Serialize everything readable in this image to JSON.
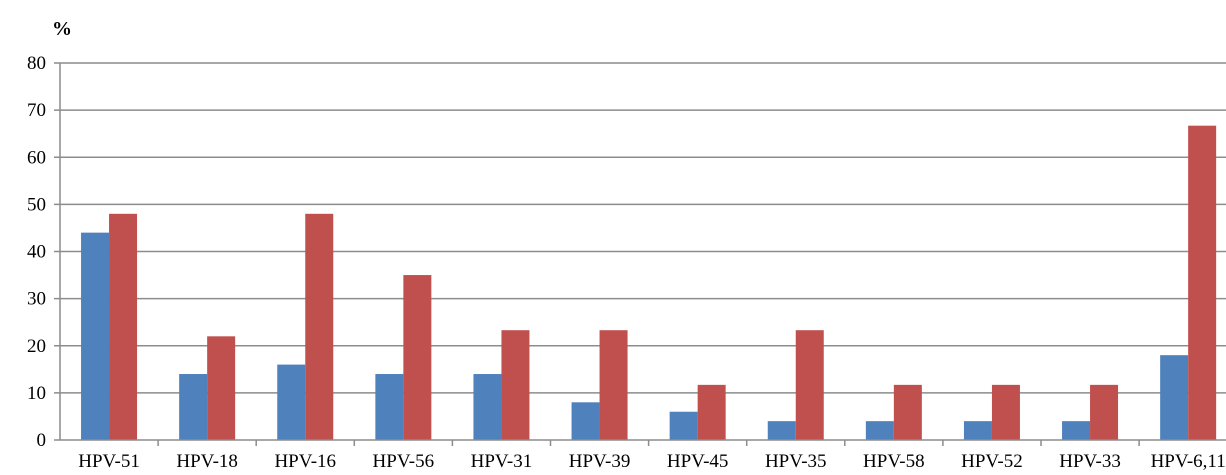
{
  "chart_data": {
    "type": "bar",
    "ylabel": "%",
    "xlabel": "",
    "ylim": [
      0,
      80
    ],
    "yticks": [
      0,
      10,
      20,
      30,
      40,
      50,
      60,
      70,
      80
    ],
    "grid": true,
    "categories": [
      "HPV-51",
      "HPV-18",
      "HPV-16",
      "HPV-56",
      "HPV-31",
      "HPV-39",
      "HPV-45",
      "HPV-35",
      "HPV-58",
      "HPV-52",
      "HPV-33",
      "HPV-6,11"
    ],
    "series": [
      {
        "color": "#4f81bd",
        "values": [
          44,
          14,
          16,
          14,
          14,
          8,
          6,
          4,
          4,
          4,
          4,
          18
        ]
      },
      {
        "color": "#c0504d",
        "values": [
          48,
          22,
          48,
          35,
          23.3,
          23.3,
          11.7,
          23.3,
          11.7,
          11.7,
          11.7,
          66.7
        ]
      }
    ]
  }
}
